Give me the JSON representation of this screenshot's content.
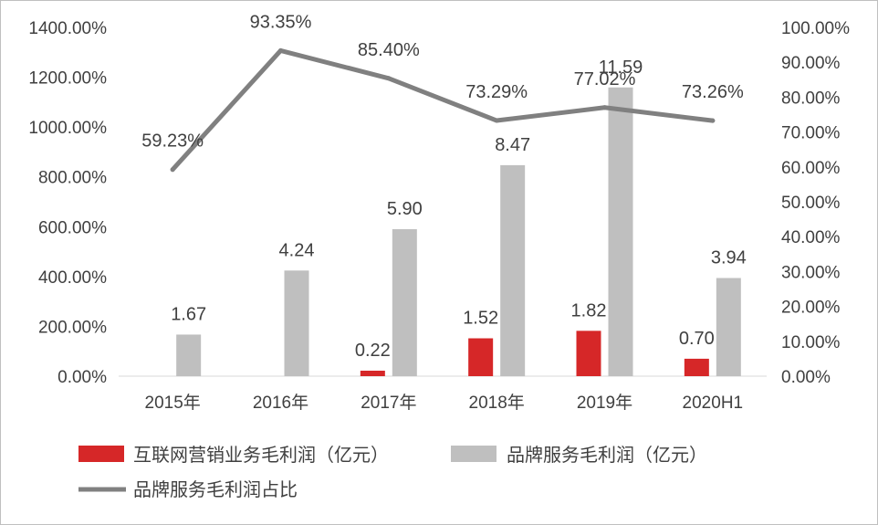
{
  "chart_data": {
    "type": "bar+line",
    "categories": [
      "2015年",
      "2016年",
      "2017年",
      "2018年",
      "2019年",
      "2020H1"
    ],
    "series": [
      {
        "name": "互联网营销业务毛利润（亿元）",
        "type": "bar",
        "axis": "left",
        "color": "#d62728",
        "values": [
          0,
          0,
          22,
          152,
          182,
          70
        ],
        "labels": [
          "",
          "",
          "0.22",
          "1.52",
          "1.82",
          "0.70"
        ]
      },
      {
        "name": "品牌服务毛利润（亿元）",
        "type": "bar",
        "axis": "left",
        "color": "#bfbfbf",
        "values": [
          167,
          424,
          590,
          847,
          1159,
          394
        ],
        "labels": [
          "1.67",
          "4.24",
          "5.90",
          "8.47",
          "11.59",
          "3.94"
        ]
      },
      {
        "name": "品牌服务毛利润占比",
        "type": "line",
        "axis": "right",
        "color": "#808080",
        "values": [
          59.23,
          93.35,
          85.4,
          73.29,
          77.02,
          73.26
        ],
        "labels": [
          "59.23%",
          "93.35%",
          "85.40%",
          "73.29%",
          "77.02%",
          "73.26%"
        ]
      }
    ],
    "left_axis": {
      "ylim": [
        0,
        1400
      ],
      "ticks": [
        "0.00%",
        "200.00%",
        "400.00%",
        "600.00%",
        "800.00%",
        "1000.00%",
        "1200.00%",
        "1400.00%"
      ]
    },
    "right_axis": {
      "ylim": [
        0,
        100
      ],
      "ticks": [
        "0.00%",
        "10.00%",
        "20.00%",
        "30.00%",
        "40.00%",
        "50.00%",
        "60.00%",
        "70.00%",
        "80.00%",
        "90.00%",
        "100.00%"
      ]
    },
    "grid": false,
    "legend_position": "bottom"
  }
}
